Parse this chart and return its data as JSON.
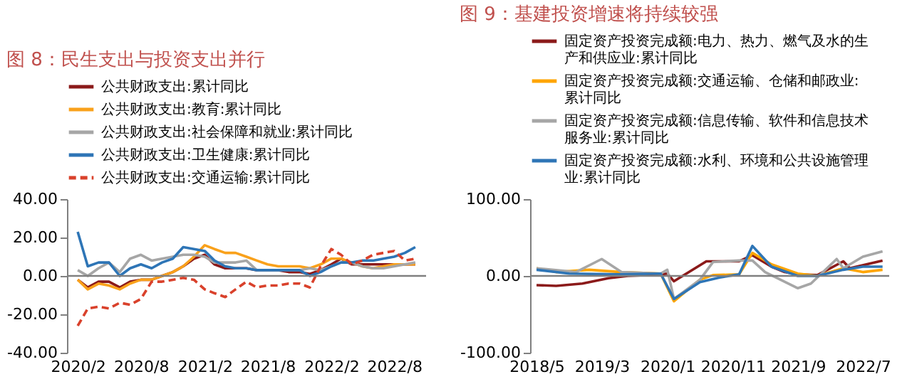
{
  "chart_data": [
    {
      "type": "line",
      "title": "图 8：民生支出与投资支出并行",
      "x": [
        "2020-02",
        "2020-03",
        "2020-04",
        "2020-05",
        "2020-06",
        "2020-07",
        "2020-08",
        "2020-09",
        "2020-10",
        "2020-11",
        "2020-12",
        "2021-01",
        "2021-02",
        "2021-03",
        "2021-04",
        "2021-05",
        "2021-06",
        "2021-07",
        "2021-08",
        "2021-09",
        "2021-10",
        "2021-11",
        "2021-12",
        "2022-01",
        "2022-02",
        "2022-03",
        "2022-04",
        "2022-05",
        "2022-06",
        "2022-07",
        "2022-08",
        "2022-09",
        "2022-10"
      ],
      "xlim": [
        "2020-01",
        "2022-11"
      ],
      "xticks": [
        {
          "value": "2020-02",
          "label": "2020/2"
        },
        {
          "value": "2020-08",
          "label": "2020/8"
        },
        {
          "value": "2021-02",
          "label": "2021/2"
        },
        {
          "value": "2021-08",
          "label": "2021/8"
        },
        {
          "value": "2022-02",
          "label": "2022/2"
        },
        {
          "value": "2022-08",
          "label": "2022/8"
        }
      ],
      "ylim": [
        -40,
        40
      ],
      "yticks": [
        {
          "value": -40,
          "label": "-40.00"
        },
        {
          "value": -20,
          "label": "-20.00"
        },
        {
          "value": 0,
          "label": "0.00"
        },
        {
          "value": 20,
          "label": "20.00"
        },
        {
          "value": 40,
          "label": "40.00"
        }
      ],
      "ref_lines": [
        {
          "axis": "y",
          "value": 0,
          "color": "#808080"
        }
      ],
      "legend": "top",
      "grid": false,
      "series": [
        {
          "name": "公共财政支出:累计同比",
          "color": "#8b1a1a",
          "line_style": "solid",
          "values": [
            -2,
            -6,
            -3,
            -3,
            -6,
            -3,
            -2,
            -2,
            0,
            2,
            5,
            9,
            11,
            6,
            4,
            4,
            4,
            3,
            3,
            3,
            2,
            2,
            1,
            3,
            6,
            9,
            6,
            6,
            6,
            6,
            6,
            6,
            6
          ]
        },
        {
          "name": "公共财政支出:教育:累计同比",
          "color": "#f9a11b",
          "line_style": "solid",
          "values": [
            -2,
            -7,
            -4,
            -5,
            -7,
            -4,
            -2,
            -2,
            0,
            2,
            5,
            10,
            16,
            14,
            12,
            12,
            10,
            8,
            6,
            5,
            5,
            5,
            4,
            6,
            9,
            9,
            7,
            5,
            4,
            5,
            6,
            6,
            6
          ]
        },
        {
          "name": "公共财政支出:社会保障和就业:累计同比",
          "color": "#a6a6a6",
          "line_style": "solid",
          "values": [
            3,
            0,
            4,
            7,
            2,
            9,
            11,
            8,
            9,
            10,
            11,
            11,
            10,
            7,
            7,
            7,
            8,
            3,
            3,
            3,
            3,
            3,
            4,
            3,
            5,
            7,
            7,
            5,
            4,
            4,
            5,
            6,
            7
          ]
        },
        {
          "name": "公共财政支出:卫生健康:累计同比",
          "color": "#2e75b6",
          "line_style": "solid",
          "values": [
            23,
            5,
            7,
            7,
            0,
            4,
            6,
            4,
            7,
            9,
            15,
            14,
            13,
            8,
            5,
            4,
            4,
            3,
            3,
            3,
            3,
            3,
            0,
            2,
            5,
            7,
            7,
            8,
            8,
            9,
            10,
            12,
            15
          ]
        },
        {
          "name": "公共财政支出:交通运输:累计同比",
          "color": "#d9412b",
          "line_style": "dashed",
          "values": [
            -26,
            -17,
            -16,
            -17,
            -14,
            -15,
            -12,
            -3,
            -3,
            -2,
            -1,
            -2,
            -7,
            -9,
            -11,
            -7,
            -3,
            -6,
            -5,
            -5,
            -4,
            -4,
            -6,
            5,
            14,
            11,
            6,
            8,
            11,
            12,
            13,
            8,
            9
          ]
        }
      ]
    },
    {
      "type": "line",
      "title": "图 9：基建投资增速将持续较强",
      "xlim": [
        "2018-04",
        "2022-11"
      ],
      "xticks": [
        {
          "value": "2018-05",
          "label": "2018/5"
        },
        {
          "value": "2019-03",
          "label": "2019/3"
        },
        {
          "value": "2020-01",
          "label": "2020/1"
        },
        {
          "value": "2020-11",
          "label": "2020/11"
        },
        {
          "value": "2021-09",
          "label": "2021/9"
        },
        {
          "value": "2022-07",
          "label": "2022/7"
        }
      ],
      "ylim": [
        -100,
        100
      ],
      "yticks": [
        {
          "value": -100,
          "label": "-100.00"
        },
        {
          "value": 0,
          "label": "0.00"
        },
        {
          "value": 100,
          "label": "100.00"
        }
      ],
      "ref_lines": [
        {
          "axis": "y",
          "value": 0,
          "color": "#808080"
        }
      ],
      "legend": "top",
      "grid": false,
      "series": [
        {
          "name": "固定资产投资完成额:电力、热力、燃气及水的生产和供应业:累计同比",
          "color": "#8b1a1a",
          "line_style": "solid",
          "x": [
            "2018-05",
            "2018-08",
            "2018-12",
            "2019-04",
            "2019-07",
            "2019-12",
            "2020-01",
            "2020-02",
            "2020-07",
            "2020-12",
            "2021-02",
            "2021-05",
            "2021-07",
            "2021-09",
            "2021-12",
            "2022-04",
            "2022-05",
            "2022-08",
            "2022-10"
          ],
          "values": [
            -12,
            -13,
            -10,
            -3,
            0,
            2,
            3,
            -7,
            19,
            19,
            27,
            12,
            5,
            2,
            1,
            19,
            10,
            16,
            20
          ]
        },
        {
          "name": "固定资产投资完成额:交通运输、仓储和邮政业:累计同比",
          "color": "#ffa500",
          "line_style": "solid",
          "x": [
            "2018-05",
            "2018-08",
            "2019-01",
            "2019-06",
            "2019-12",
            "2020-02",
            "2020-06",
            "2020-08",
            "2020-12",
            "2021-02",
            "2021-05",
            "2021-09",
            "2021-12",
            "2022-04",
            "2022-07",
            "2022-10"
          ],
          "values": [
            10,
            5,
            8,
            5,
            3,
            -33,
            -5,
            1,
            2,
            30,
            15,
            3,
            0,
            10,
            5,
            8
          ]
        },
        {
          "name": "固定资产投资完成额:信息传输、软件和信息技术服务业:累计同比",
          "color": "#a6a6a6",
          "line_style": "solid",
          "x": [
            "2018-05",
            "2018-11",
            "2019-03",
            "2019-06",
            "2019-12",
            "2020-01",
            "2020-02",
            "2020-06",
            "2020-08",
            "2020-12",
            "2021-02",
            "2021-04",
            "2021-09",
            "2021-11",
            "2022-03",
            "2022-04",
            "2022-07",
            "2022-10"
          ],
          "values": [
            10,
            5,
            22,
            5,
            3,
            8,
            -30,
            -5,
            18,
            20,
            20,
            5,
            -16,
            -10,
            22,
            10,
            25,
            32
          ]
        },
        {
          "name": "固定资产投资完成额:水利、环境和公共设施管理业:累计同比",
          "color": "#2e75b6",
          "line_style": "solid",
          "x": [
            "2018-05",
            "2018-10",
            "2019-06",
            "2019-12",
            "2020-02",
            "2020-06",
            "2020-09",
            "2020-12",
            "2021-02",
            "2021-05",
            "2021-09",
            "2021-12",
            "2022-04",
            "2022-07",
            "2022-10"
          ],
          "values": [
            8,
            3,
            2,
            3,
            -30,
            -8,
            -2,
            2,
            39,
            12,
            0,
            0,
            8,
            12,
            12
          ]
        }
      ]
    }
  ]
}
